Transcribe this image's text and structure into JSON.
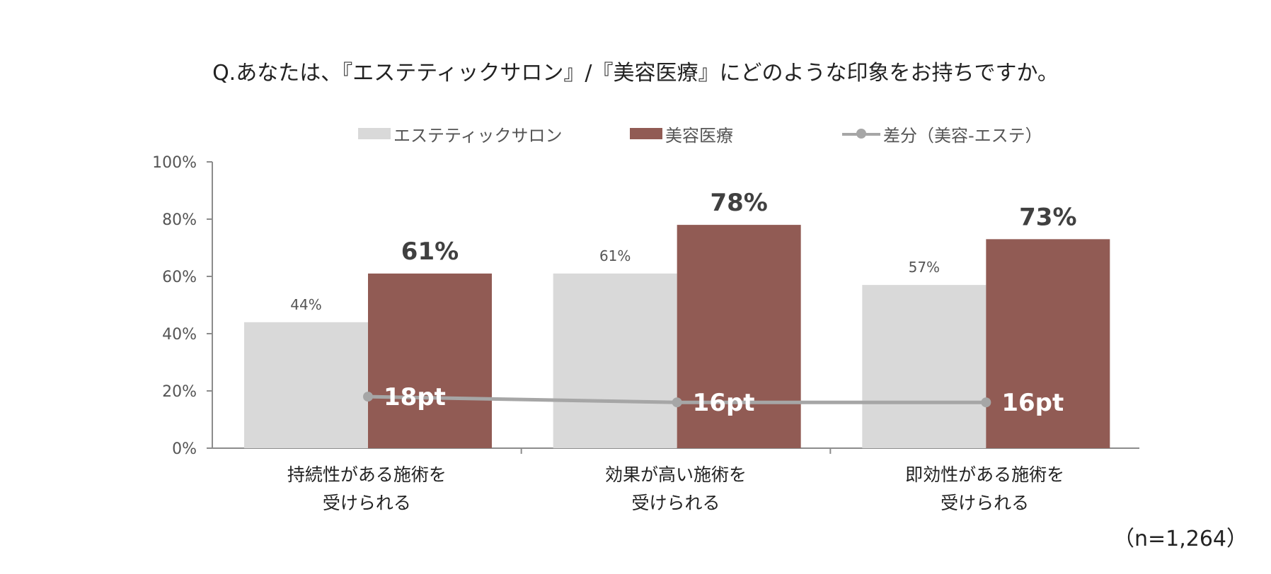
{
  "title": "Q.あなたは、『エステティックサロン』/『美容医療』にどのような印象をお持ちですか。",
  "note": "（n=1,264）",
  "colors": {
    "esthe": "#d9d9d9",
    "medical": "#915b54",
    "diff": "#a6a6a6"
  },
  "legend": {
    "esthe": "エステティックサロン",
    "medical": "美容医療",
    "diff": "差分（美容-エステ）"
  },
  "chart_data": {
    "type": "bar",
    "ylim": [
      0,
      100
    ],
    "yticks": [
      "0%",
      "20%",
      "40%",
      "60%",
      "80%",
      "100%"
    ],
    "categories": [
      "持続性がある施術を\n受けられる",
      "効果が高い施術を\n受けられる",
      "即効性がある施術を\n受けられる"
    ],
    "series": [
      {
        "name": "エステティックサロン",
        "values": [
          44,
          61,
          57
        ],
        "labels": [
          "44%",
          "61%",
          "57%"
        ]
      },
      {
        "name": "美容医療",
        "values": [
          61,
          78,
          73
        ],
        "labels": [
          "61%",
          "78%",
          "73%"
        ]
      },
      {
        "name": "差分（美容-エステ）",
        "type": "line",
        "values": [
          18,
          16,
          16
        ],
        "labels": [
          "18pt",
          "16pt",
          "16pt"
        ]
      }
    ],
    "grid": false,
    "legend_position": "top"
  }
}
